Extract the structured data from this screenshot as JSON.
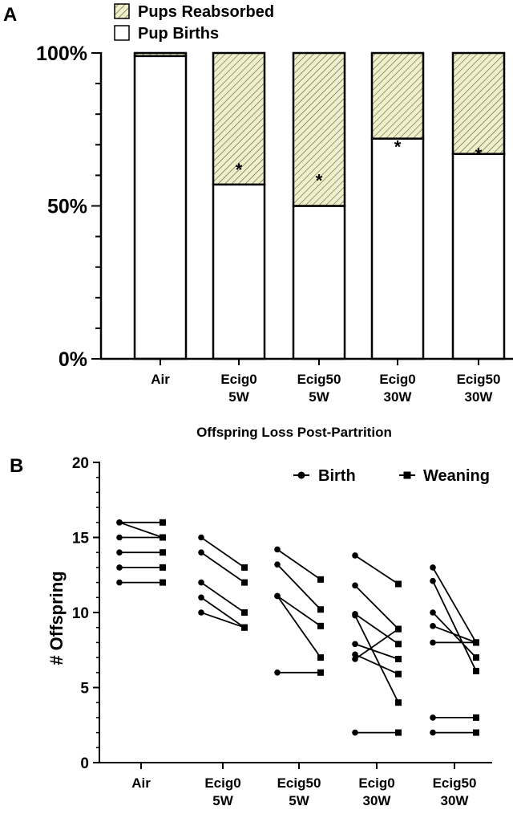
{
  "chart_data": [
    {
      "panel": "A",
      "type": "bar",
      "stacked": true,
      "title": "",
      "categories": [
        [
          "Air"
        ],
        [
          "Ecig0",
          "5W"
        ],
        [
          "Ecig50",
          "5W"
        ],
        [
          "Ecig0",
          "30W"
        ],
        [
          "Ecig50",
          "30W"
        ]
      ],
      "series": [
        {
          "name": "Pup Births",
          "values": [
            99,
            57,
            50,
            72,
            67
          ],
          "color": "#ffffff"
        },
        {
          "name": "Pups Reabsorbed",
          "values": [
            1,
            43,
            50,
            28,
            33
          ],
          "color": "#f0f0c8"
        }
      ],
      "significance": [
        "",
        "*",
        "*",
        "*",
        "*"
      ],
      "ylim": [
        0,
        100
      ],
      "yticks": [
        "0%",
        "50%",
        "100%"
      ],
      "legend": [
        "Pups Reabsorbed",
        "Pup Births"
      ],
      "legend_position": "top-left"
    },
    {
      "panel": "B",
      "type": "line",
      "title": "Offspring Loss Post-Partrition",
      "ylabel": "# Offspring",
      "categories": [
        [
          "Air"
        ],
        [
          "Ecig0",
          "5W"
        ],
        [
          "Ecig50",
          "5W"
        ],
        [
          "Ecig0",
          "30W"
        ],
        [
          "Ecig50",
          "30W"
        ]
      ],
      "ylim": [
        0,
        20
      ],
      "yticks": [
        "0",
        "5",
        "10",
        "15",
        "20"
      ],
      "legend": [
        {
          "name": "Birth",
          "marker": "circle"
        },
        {
          "name": "Weaning",
          "marker": "square"
        }
      ],
      "legend_position": "top-right",
      "groups": [
        {
          "pairs": [
            [
              16,
              16
            ],
            [
              15,
              15
            ],
            [
              14,
              14
            ],
            [
              13,
              13
            ],
            [
              12,
              12
            ],
            [
              16,
              15
            ]
          ]
        },
        {
          "pairs": [
            [
              15,
              13
            ],
            [
              14,
              12
            ],
            [
              12,
              10
            ],
            [
              11,
              9
            ],
            [
              10,
              9
            ]
          ]
        },
        {
          "pairs": [
            [
              14.2,
              12.2
            ],
            [
              13.2,
              10.2
            ],
            [
              11.1,
              9.1
            ],
            [
              11.1,
              7
            ],
            [
              6,
              6
            ]
          ]
        },
        {
          "pairs": [
            [
              13.8,
              11.9
            ],
            [
              11.8,
              8.9
            ],
            [
              9.9,
              7.9
            ],
            [
              9.8,
              4
            ],
            [
              7.9,
              6.9
            ],
            [
              7.2,
              5.9
            ],
            [
              6.9,
              8.9
            ],
            [
              2,
              2
            ]
          ]
        },
        {
          "pairs": [
            [
              13,
              8
            ],
            [
              12.1,
              6.1
            ],
            [
              10,
              7
            ],
            [
              9.1,
              8
            ],
            [
              8,
              8
            ],
            [
              3,
              3
            ],
            [
              2,
              2
            ]
          ]
        }
      ]
    }
  ],
  "panel_labels": {
    "a": "A",
    "b": "B"
  }
}
